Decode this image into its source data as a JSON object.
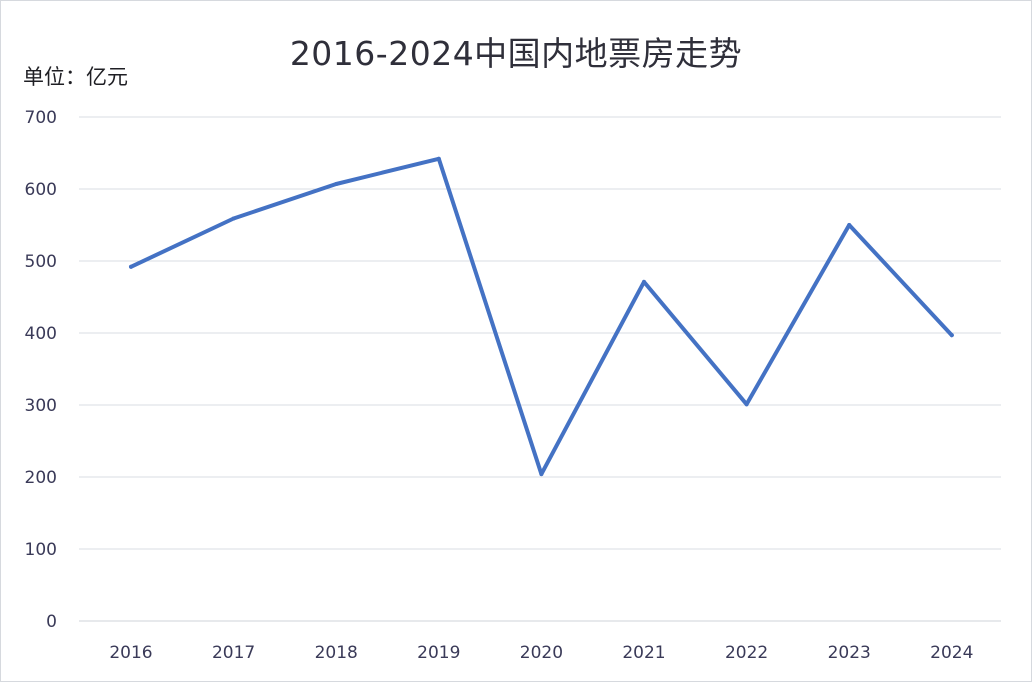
{
  "chart_data": {
    "type": "line",
    "title": "2016-2024中国内地票房走势",
    "unit_label": "单位：亿元",
    "categories": [
      "2016",
      "2017",
      "2018",
      "2019",
      "2020",
      "2021",
      "2022",
      "2023",
      "2024"
    ],
    "series": [
      {
        "values": [
          492,
          559,
          607,
          642,
          204,
          471,
          301,
          550,
          397
        ]
      }
    ],
    "ylim": [
      0,
      700
    ],
    "yticks": [
      "0",
      "100",
      "200",
      "300",
      "400",
      "500",
      "600",
      "700"
    ],
    "grid": true,
    "legend": "none",
    "colors": {
      "line": "#4472c4",
      "grid": "#d9dde3"
    }
  }
}
